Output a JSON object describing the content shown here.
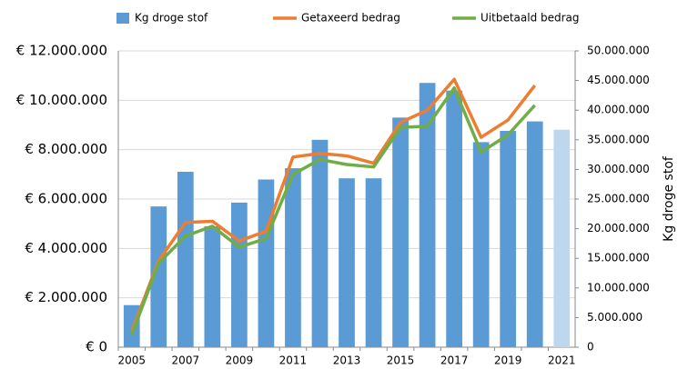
{
  "chart_data": {
    "type": "bar_line",
    "categories": [
      "2005",
      null,
      "2007",
      null,
      "2009",
      null,
      "2011",
      null,
      "2013",
      null,
      "2015",
      null,
      "2017",
      null,
      "2019",
      null,
      "2021"
    ],
    "series": [
      {
        "name": "Kg droge stof",
        "type": "bar",
        "axis": "y2",
        "color": "#5b9bd5",
        "colors": [
          "#5b9bd5",
          "#5b9bd5",
          "#5b9bd5",
          "#5b9bd5",
          "#5b9bd5",
          "#5b9bd5",
          "#5b9bd5",
          "#5b9bd5",
          "#5b9bd5",
          "#5b9bd5",
          "#5b9bd5",
          "#5b9bd5",
          "#5b9bd5",
          "#5b9bd5",
          "#5b9bd5",
          "#5b9bd5",
          "#bdd7ee"
        ],
        "values": [
          7100000,
          23750000,
          29600000,
          20400000,
          24400000,
          28300000,
          30200000,
          35000000,
          28500000,
          28500000,
          38750000,
          44600000,
          43300000,
          34600000,
          36500000,
          38100000,
          36700000
        ]
      },
      {
        "name": "Getaxeerd bedrag",
        "type": "line",
        "color": "#ed7d31",
        "values": [
          650000,
          3500000,
          5050000,
          5100000,
          4300000,
          4700000,
          7700000,
          7850000,
          7750000,
          7450000,
          9100000,
          9600000,
          10850000,
          8500000,
          9200000,
          10600000,
          null
        ]
      },
      {
        "name": "Uitbetaald bedrag",
        "type": "line",
        "color": "#70ad47",
        "values": [
          500000,
          3400000,
          4500000,
          4900000,
          4050000,
          4400000,
          7000000,
          7600000,
          7400000,
          7300000,
          8900000,
          8950000,
          10500000,
          7900000,
          8600000,
          9800000,
          null
        ]
      }
    ],
    "ylim": [
      0,
      12000000
    ],
    "yticks": [
      {
        "value": 0,
        "label": "€ 0"
      },
      {
        "value": 2000000,
        "label": "€ 2.000.000"
      },
      {
        "value": 4000000,
        "label": "€ 4.000.000"
      },
      {
        "value": 6000000,
        "label": "€ 6.000.000"
      },
      {
        "value": 8000000,
        "label": "€ 8.000.000"
      },
      {
        "value": 10000000,
        "label": "€ 10.000.000"
      },
      {
        "value": 12000000,
        "label": "€ 12.000.000"
      }
    ],
    "y2lim": [
      0,
      50000000
    ],
    "y2ticks": [
      0,
      {
        "value": 5000000,
        "label": "5.000.000"
      },
      {
        "value": 10000000,
        "label": "10.000.000"
      },
      {
        "value": 15000000,
        "label": "15.000.000"
      },
      {
        "value": 20000000,
        "label": "20.000.000"
      },
      {
        "value": 25000000,
        "label": "25.000.000"
      },
      {
        "value": 30000000,
        "label": "30.000.000"
      },
      {
        "value": 35000000,
        "label": "35.000.000"
      },
      {
        "value": 40000000,
        "label": "40.000.000"
      },
      {
        "value": 45000000,
        "label": "45.000.000"
      },
      {
        "value": 50000000,
        "label": "50.000.000"
      }
    ],
    "y2label": "Kg droge stof",
    "grid": true,
    "legend": "top"
  }
}
